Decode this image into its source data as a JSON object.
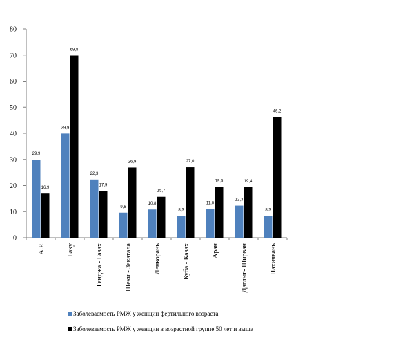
{
  "chart_data": {
    "type": "bar",
    "categories": [
      "А.Р.",
      "Баку",
      "Гянджа - Газах",
      "Шеки - Закатала",
      "Ленкорань",
      "Куба - Казах",
      "Аран",
      "Даглыг- Ширван",
      "Нахичвань"
    ],
    "series": [
      {
        "name": "Заболеваемость РМЖ у женщин фертильного возраста",
        "color": "#4f81bd",
        "values": [
          29.9,
          39.9,
          22.3,
          9.6,
          10.8,
          8.3,
          11.0,
          12.3,
          8.3
        ],
        "labels": [
          "29,9",
          "39,9",
          "22,3",
          "9,6",
          "10,8",
          "8,3",
          "11,0",
          "12,3",
          "8,3"
        ]
      },
      {
        "name": "Заболеваемость РМЖ у женщин в возрастной группе 50 лет и выше",
        "color": "#000000",
        "values": [
          16.9,
          69.8,
          17.9,
          26.9,
          15.7,
          27.0,
          19.5,
          19.4,
          46.2
        ],
        "labels": [
          "16,9",
          "69,8",
          "17,9",
          "26,9",
          "15,7",
          "27,0",
          "19,5",
          "19,4",
          "46,2"
        ]
      }
    ],
    "yticks": [
      "0",
      "10",
      "20",
      "30",
      "40",
      "50",
      "60",
      "70",
      "80"
    ],
    "ylim": [
      0,
      80
    ],
    "legend_position": "bottom"
  }
}
